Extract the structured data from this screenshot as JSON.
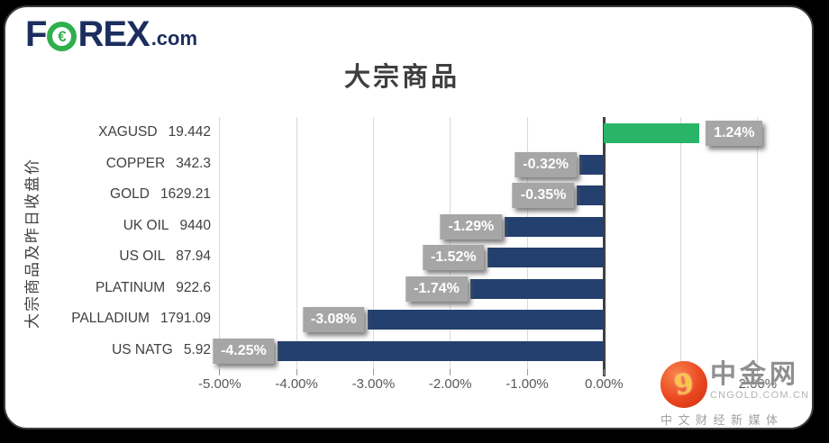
{
  "brand": {
    "f": "F",
    "o_symbol": "€",
    "rex": "REX",
    "dotcom": ".com"
  },
  "chart_data": {
    "type": "bar",
    "orientation": "horizontal",
    "title": "大宗商品",
    "axis_label": "大宗商品及昨日收盘价",
    "categories": [
      "XAGUSD",
      "COPPER",
      "GOLD",
      "UK OIL",
      "US OIL",
      "PLATINUM",
      "PALLADIUM",
      "US NATG"
    ],
    "close_values": [
      "19.442",
      "342.3",
      "1629.21",
      "9440",
      "87.94",
      "922.6",
      "1791.09",
      "5.92"
    ],
    "change_pct": [
      1.24,
      -0.32,
      -0.35,
      -1.29,
      -1.52,
      -1.74,
      -3.08,
      -4.25
    ],
    "bar_labels": [
      "1.24%",
      "-0.32%",
      "-0.35%",
      "-1.29%",
      "-1.52%",
      "-1.74%",
      "-3.08%",
      "-4.25%"
    ],
    "xlim": [
      -5,
      2
    ],
    "x_tick_values": [
      -5,
      -4,
      -3,
      -2,
      -1,
      0,
      1,
      2
    ],
    "x_tick_labels": [
      "-5.00%",
      "-4.00%",
      "-3.00%",
      "-2.00%",
      "-1.00%",
      "0.00%",
      "1.00%",
      "2.00%"
    ],
    "grid": true,
    "legend": "none",
    "positive_color": "#28b567",
    "negative_color": "#24406e",
    "label_box_color": "#a6a6a6"
  },
  "watermark": {
    "icon_glyph": "9",
    "name": "中金网",
    "url": "CNGOLD.COM.CN",
    "tagline": "中文财经新媒体"
  }
}
